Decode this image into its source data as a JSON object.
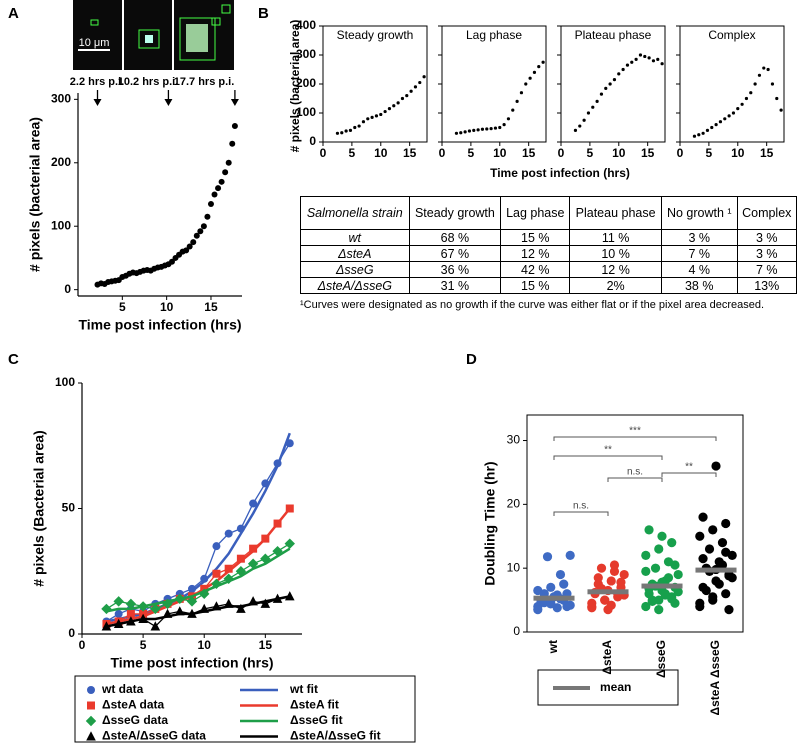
{
  "panel_labels": [
    "A",
    "B",
    "C",
    "D"
  ],
  "panel_B": {
    "ylabel": "# pixels (bacterial area)",
    "xlabel": "Time post infection (hrs)"
  },
  "chart_data": [
    {
      "type": "scatter",
      "xlabel": "Time post infection (hrs)",
      "ylabel": "# pixels (bacterial area)",
      "color": "#000000",
      "x": [
        2.2,
        2.6,
        3.0,
        3.4,
        3.8,
        4.2,
        4.6,
        5.0,
        5.4,
        5.8,
        6.2,
        6.6,
        7.0,
        7.4,
        7.8,
        8.2,
        8.6,
        9.0,
        9.4,
        9.8,
        10.2,
        10.6,
        11.0,
        11.4,
        11.8,
        12.2,
        12.6,
        13.0,
        13.4,
        13.8,
        14.2,
        14.6,
        15.0,
        15.4,
        15.8,
        16.2,
        16.6,
        17.0,
        17.4,
        17.7
      ],
      "values": [
        8,
        10,
        9,
        12,
        13,
        14,
        15,
        20,
        22,
        25,
        27,
        26,
        28,
        30,
        31,
        30,
        33,
        35,
        36,
        38,
        40,
        44,
        50,
        55,
        60,
        62,
        68,
        75,
        85,
        92,
        100,
        115,
        135,
        150,
        160,
        170,
        185,
        200,
        230,
        258
      ],
      "xlim": [
        0,
        18.5
      ],
      "ylim": [
        -10,
        310
      ],
      "xticks": [
        5,
        10,
        15
      ],
      "yticks": [
        0,
        100,
        200,
        300
      ],
      "images": {
        "labels": [
          "2.2 hrs p.i.",
          "10.2 hrs p.i.",
          "17.7 hrs p.i."
        ],
        "x": [
          2.2,
          10.2,
          17.7
        ],
        "scale_bar": "10 μm"
      }
    },
    {
      "type": "scatter",
      "title": "Steady growth",
      "color": "#000000",
      "x": [
        2.5,
        3.25,
        4,
        4.75,
        5.5,
        6.25,
        7,
        7.75,
        8.5,
        9.25,
        10,
        10.75,
        11.5,
        12.25,
        13,
        13.75,
        14.5,
        15.25,
        16,
        16.75,
        17.5
      ],
      "values": [
        30,
        32,
        38,
        40,
        50,
        55,
        70,
        80,
        85,
        90,
        95,
        105,
        115,
        125,
        135,
        150,
        160,
        175,
        190,
        205,
        225
      ],
      "xlim": [
        0,
        18
      ],
      "ylim": [
        0,
        400
      ],
      "xticks": [
        0,
        5,
        10,
        15
      ],
      "yticks": [
        0,
        100,
        200,
        300,
        400
      ],
      "ytick_labels": true
    },
    {
      "type": "scatter",
      "title": "Lag phase",
      "color": "#000000",
      "x": [
        2.5,
        3.25,
        4,
        4.75,
        5.5,
        6.25,
        7,
        7.75,
        8.5,
        9.25,
        10,
        10.75,
        11.5,
        12.25,
        13,
        13.75,
        14.5,
        15.25,
        16,
        16.75,
        17.5
      ],
      "values": [
        30,
        32,
        35,
        38,
        40,
        42,
        44,
        45,
        46,
        48,
        50,
        60,
        80,
        110,
        140,
        170,
        200,
        220,
        240,
        260,
        275
      ],
      "xlim": [
        0,
        18
      ],
      "ylim": [
        0,
        400
      ],
      "xticks": [
        0,
        5,
        10,
        15
      ],
      "yticks": [
        0,
        100,
        200,
        300,
        400
      ],
      "ytick_labels": false
    },
    {
      "type": "scatter",
      "title": "Plateau phase",
      "color": "#000000",
      "x": [
        2.5,
        3.25,
        4,
        4.75,
        5.5,
        6.25,
        7,
        7.75,
        8.5,
        9.25,
        10,
        10.75,
        11.5,
        12.25,
        13,
        13.75,
        14.5,
        15.25,
        16,
        16.75,
        17.5
      ],
      "values": [
        40,
        55,
        75,
        100,
        120,
        140,
        165,
        185,
        200,
        215,
        235,
        250,
        265,
        275,
        285,
        300,
        295,
        290,
        280,
        285,
        270
      ],
      "xlim": [
        0,
        18
      ],
      "ylim": [
        0,
        400
      ],
      "xticks": [
        0,
        5,
        10,
        15
      ],
      "yticks": [
        0,
        100,
        200,
        300,
        400
      ],
      "ytick_labels": false
    },
    {
      "type": "scatter",
      "title": "Complex",
      "color": "#000000",
      "x": [
        2.5,
        3.25,
        4,
        4.75,
        5.5,
        6.25,
        7,
        7.75,
        8.5,
        9.25,
        10,
        10.75,
        11.5,
        12.25,
        13,
        13.75,
        14.5,
        15.25,
        16,
        16.75,
        17.5
      ],
      "values": [
        20,
        25,
        30,
        40,
        50,
        60,
        70,
        80,
        90,
        100,
        115,
        130,
        150,
        170,
        200,
        230,
        255,
        250,
        200,
        150,
        110
      ],
      "xlim": [
        0,
        18
      ],
      "ylim": [
        0,
        400
      ],
      "xticks": [
        0,
        5,
        10,
        15
      ],
      "yticks": [
        0,
        100,
        200,
        300,
        400
      ],
      "ytick_labels": false
    },
    {
      "type": "line",
      "xlabel": "Time post infection (hrs)",
      "ylabel": "# pixels (Bacterial area)",
      "x": [
        2,
        3,
        4,
        5,
        6,
        7,
        8,
        9,
        10,
        11,
        12,
        13,
        14,
        15,
        16,
        17
      ],
      "series": [
        {
          "name": "wt data",
          "color": "#3a5fbd",
          "marker": "circle",
          "values": [
            5,
            8,
            10,
            9,
            12,
            14,
            16,
            18,
            22,
            35,
            40,
            42,
            52,
            60,
            68,
            76
          ]
        },
        {
          "name": "wt fit",
          "color": "#3a5fbd",
          "values": [
            5,
            6,
            7,
            8,
            10,
            12,
            14,
            17,
            21,
            26,
            32,
            40,
            48,
            57,
            67,
            80
          ]
        },
        {
          "name": "ΔsteA data",
          "color": "#ea3a2d",
          "marker": "square",
          "values": [
            4,
            5,
            8,
            8,
            10,
            12,
            14,
            15,
            18,
            24,
            26,
            30,
            34,
            38,
            44,
            50
          ]
        },
        {
          "name": "ΔsteA fit",
          "color": "#ea3a2d",
          "values": [
            4,
            5,
            6,
            7,
            9,
            11,
            13,
            15,
            18,
            21,
            25,
            29,
            33,
            38,
            44,
            50
          ]
        },
        {
          "name": "ΔsseG data",
          "color": "#1e9e48",
          "marker": "diamond",
          "values": [
            10,
            13,
            12,
            11,
            10,
            12,
            14,
            13,
            16,
            20,
            22,
            25,
            28,
            30,
            33,
            36
          ]
        },
        {
          "name": "ΔsseG fit",
          "color": "#1e9e48",
          "values": [
            9,
            10,
            10,
            11,
            12,
            13,
            14,
            15,
            17,
            19,
            21,
            23,
            26,
            28,
            31,
            34
          ]
        },
        {
          "name": "ΔsteA/ΔsseG data",
          "color": "#000000",
          "marker": "triangle",
          "values": [
            3,
            4,
            5,
            6,
            3,
            8,
            9,
            8,
            10,
            11,
            12,
            10,
            13,
            12,
            14,
            15
          ]
        },
        {
          "name": "ΔsteA/ΔsseG fit",
          "color": "#000000",
          "values": [
            3,
            4,
            5,
            6,
            6,
            7,
            8,
            8,
            9,
            10,
            11,
            11,
            12,
            13,
            14,
            15
          ]
        }
      ],
      "xlim": [
        0,
        18
      ],
      "ylim": [
        0,
        100
      ],
      "xticks": [
        0,
        5,
        10,
        15
      ],
      "yticks": [
        0,
        50,
        100
      ],
      "legend": "bottom"
    },
    {
      "type": "strip",
      "ylabel": "Doubling Time (hr)",
      "categories": [
        "wt",
        "ΔsteA",
        "ΔsseG",
        "ΔsteA ΔsseG"
      ],
      "colors": [
        "#3f6bc4",
        "#e53a2c",
        "#17a04c",
        "#000000"
      ],
      "values": [
        [
          4,
          4.5,
          5,
          5,
          5.5,
          4,
          6,
          3.8,
          4.2,
          5,
          5.2,
          6.5,
          7,
          7.5,
          4.8,
          5.5,
          6,
          4.6,
          5.8,
          12,
          11.8,
          9,
          3.5,
          4.4,
          5
        ],
        [
          4,
          5,
          5.5,
          6,
          6.5,
          7,
          7.5,
          8,
          9,
          10,
          10.5,
          4.5,
          5,
          6,
          6.2,
          3.5,
          7.8,
          8.5,
          4.2,
          5.8,
          6.8,
          9.5,
          3.8
        ],
        [
          4,
          5,
          5.5,
          6,
          6.5,
          7,
          7.5,
          8,
          9,
          10,
          11,
          12,
          13,
          14,
          16,
          15,
          4.5,
          5,
          6,
          6.3,
          7.2,
          8.5,
          9.5,
          3.5,
          5.2,
          6.8,
          7.8,
          10.5,
          4.8,
          5.8
        ],
        [
          4,
          5,
          6,
          7,
          8,
          9,
          10,
          11,
          12,
          13,
          14,
          15,
          16,
          17,
          18,
          26,
          3.5,
          6.5,
          7.5,
          8.5,
          9.5,
          10.5,
          4.5,
          5.5,
          12.5,
          11.5,
          9.8,
          8.8
        ]
      ],
      "means": [
        5.3,
        6.3,
        7.2,
        9.7
      ],
      "mean_color": "#777777",
      "legend_label": "mean",
      "ylim": [
        0,
        34
      ],
      "yticks": [
        0,
        10,
        20,
        30
      ],
      "significance": [
        {
          "groups": [
            0,
            3
          ],
          "label": "***"
        },
        {
          "groups": [
            0,
            2
          ],
          "label": "**"
        },
        {
          "groups": [
            2,
            3
          ],
          "label": "**"
        },
        {
          "groups": [
            0,
            1
          ],
          "label": "n.s."
        },
        {
          "groups": [
            1,
            2
          ],
          "label": "n.s."
        }
      ]
    }
  ],
  "table": {
    "header": [
      "Salmonella strain",
      "Steady growth",
      "Lag phase",
      "Plateau phase",
      "No growth ¹",
      "Complex"
    ],
    "rows": [
      [
        "wt",
        "68 %",
        "15 %",
        "11 %",
        "3 %",
        "3 %"
      ],
      [
        "ΔsteA",
        "67 %",
        "12 %",
        "10 %",
        "7 %",
        "3 %"
      ],
      [
        "ΔsseG",
        "36 %",
        "42 %",
        "12 %",
        "4 %",
        "7 %"
      ],
      [
        "ΔsteA/ΔsseG",
        "31 %",
        "15 %",
        "2%",
        "38 %",
        "13%"
      ]
    ],
    "footnote": "¹Curves were designated as no growth if the curve was either flat or if the pixel area decreased."
  }
}
